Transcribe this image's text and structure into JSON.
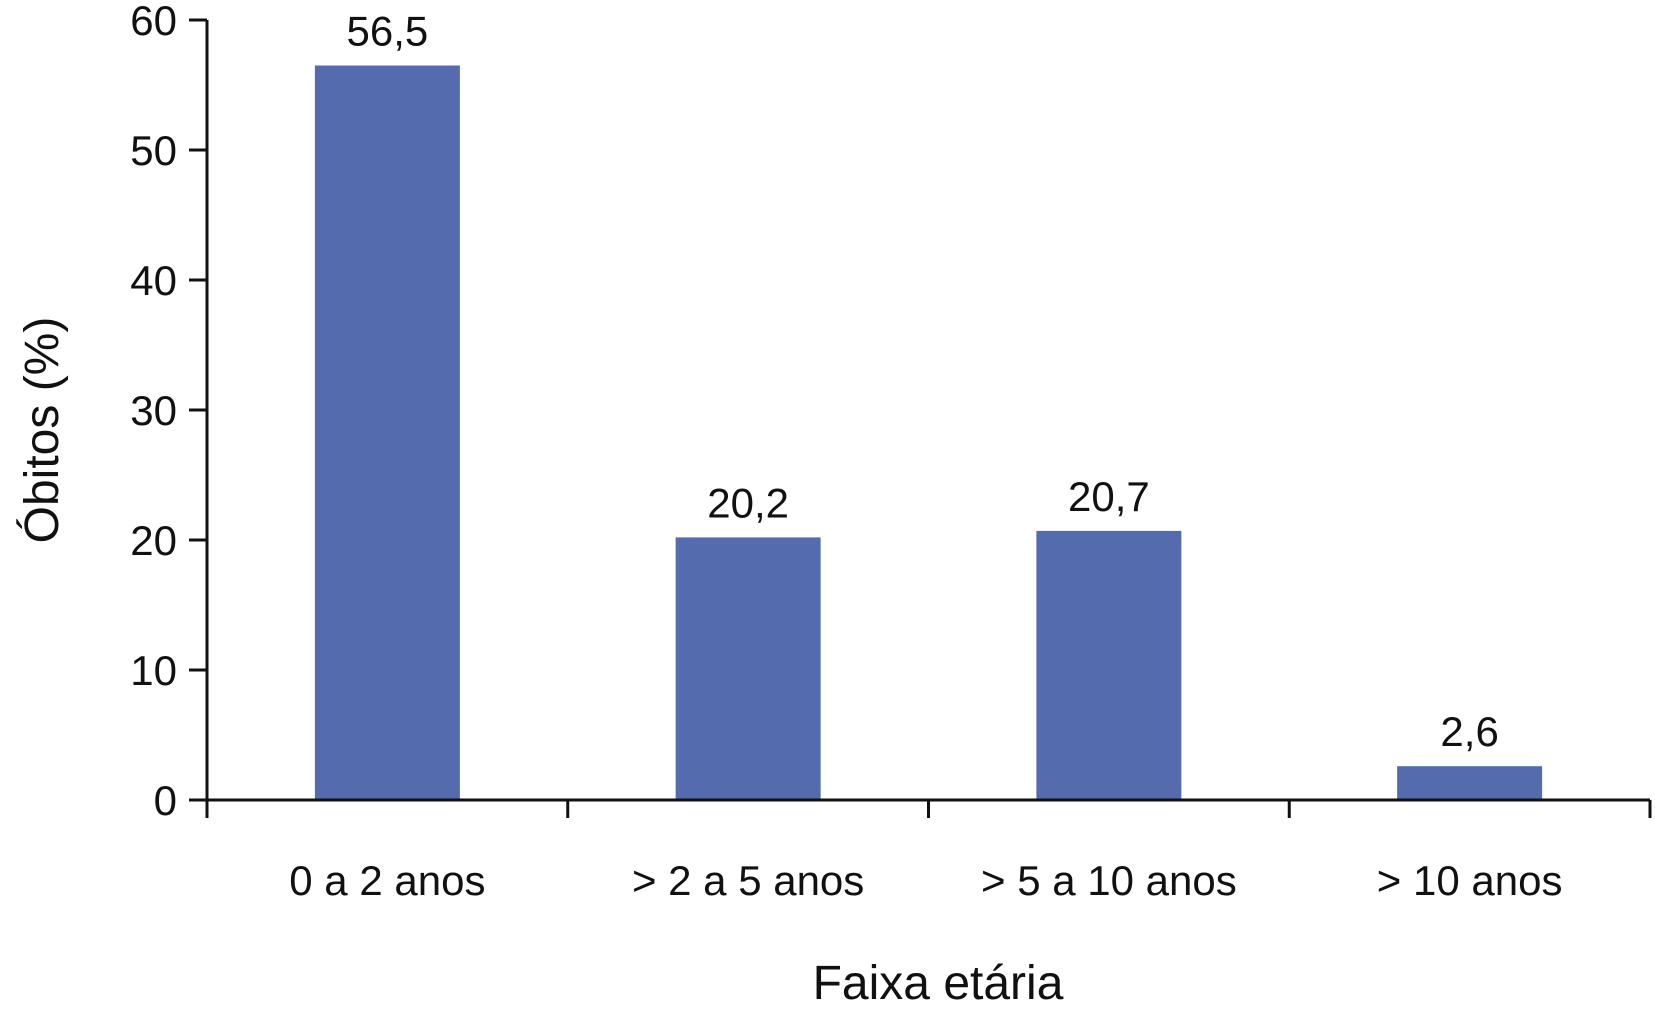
{
  "chart_data": {
    "type": "bar",
    "categories": [
      "0 a 2 anos",
      "> 2 a 5 anos",
      "> 5 a 10 anos",
      "> 10 anos"
    ],
    "values": [
      56.5,
      20.2,
      20.7,
      2.6
    ],
    "data_labels": [
      "56,5",
      "20,2",
      "20,7",
      "2,6"
    ],
    "title": "",
    "xlabel": "Faixa etária",
    "ylabel": "Óbitos (%)",
    "ylim": [
      0,
      60
    ],
    "yticks": [
      0,
      10,
      20,
      30,
      40,
      50,
      60
    ],
    "ytick_labels": [
      "0",
      "10",
      "20",
      "30",
      "40",
      "50",
      "60"
    ],
    "grid": false,
    "legend": "none",
    "bar_color": "#546CAD"
  }
}
